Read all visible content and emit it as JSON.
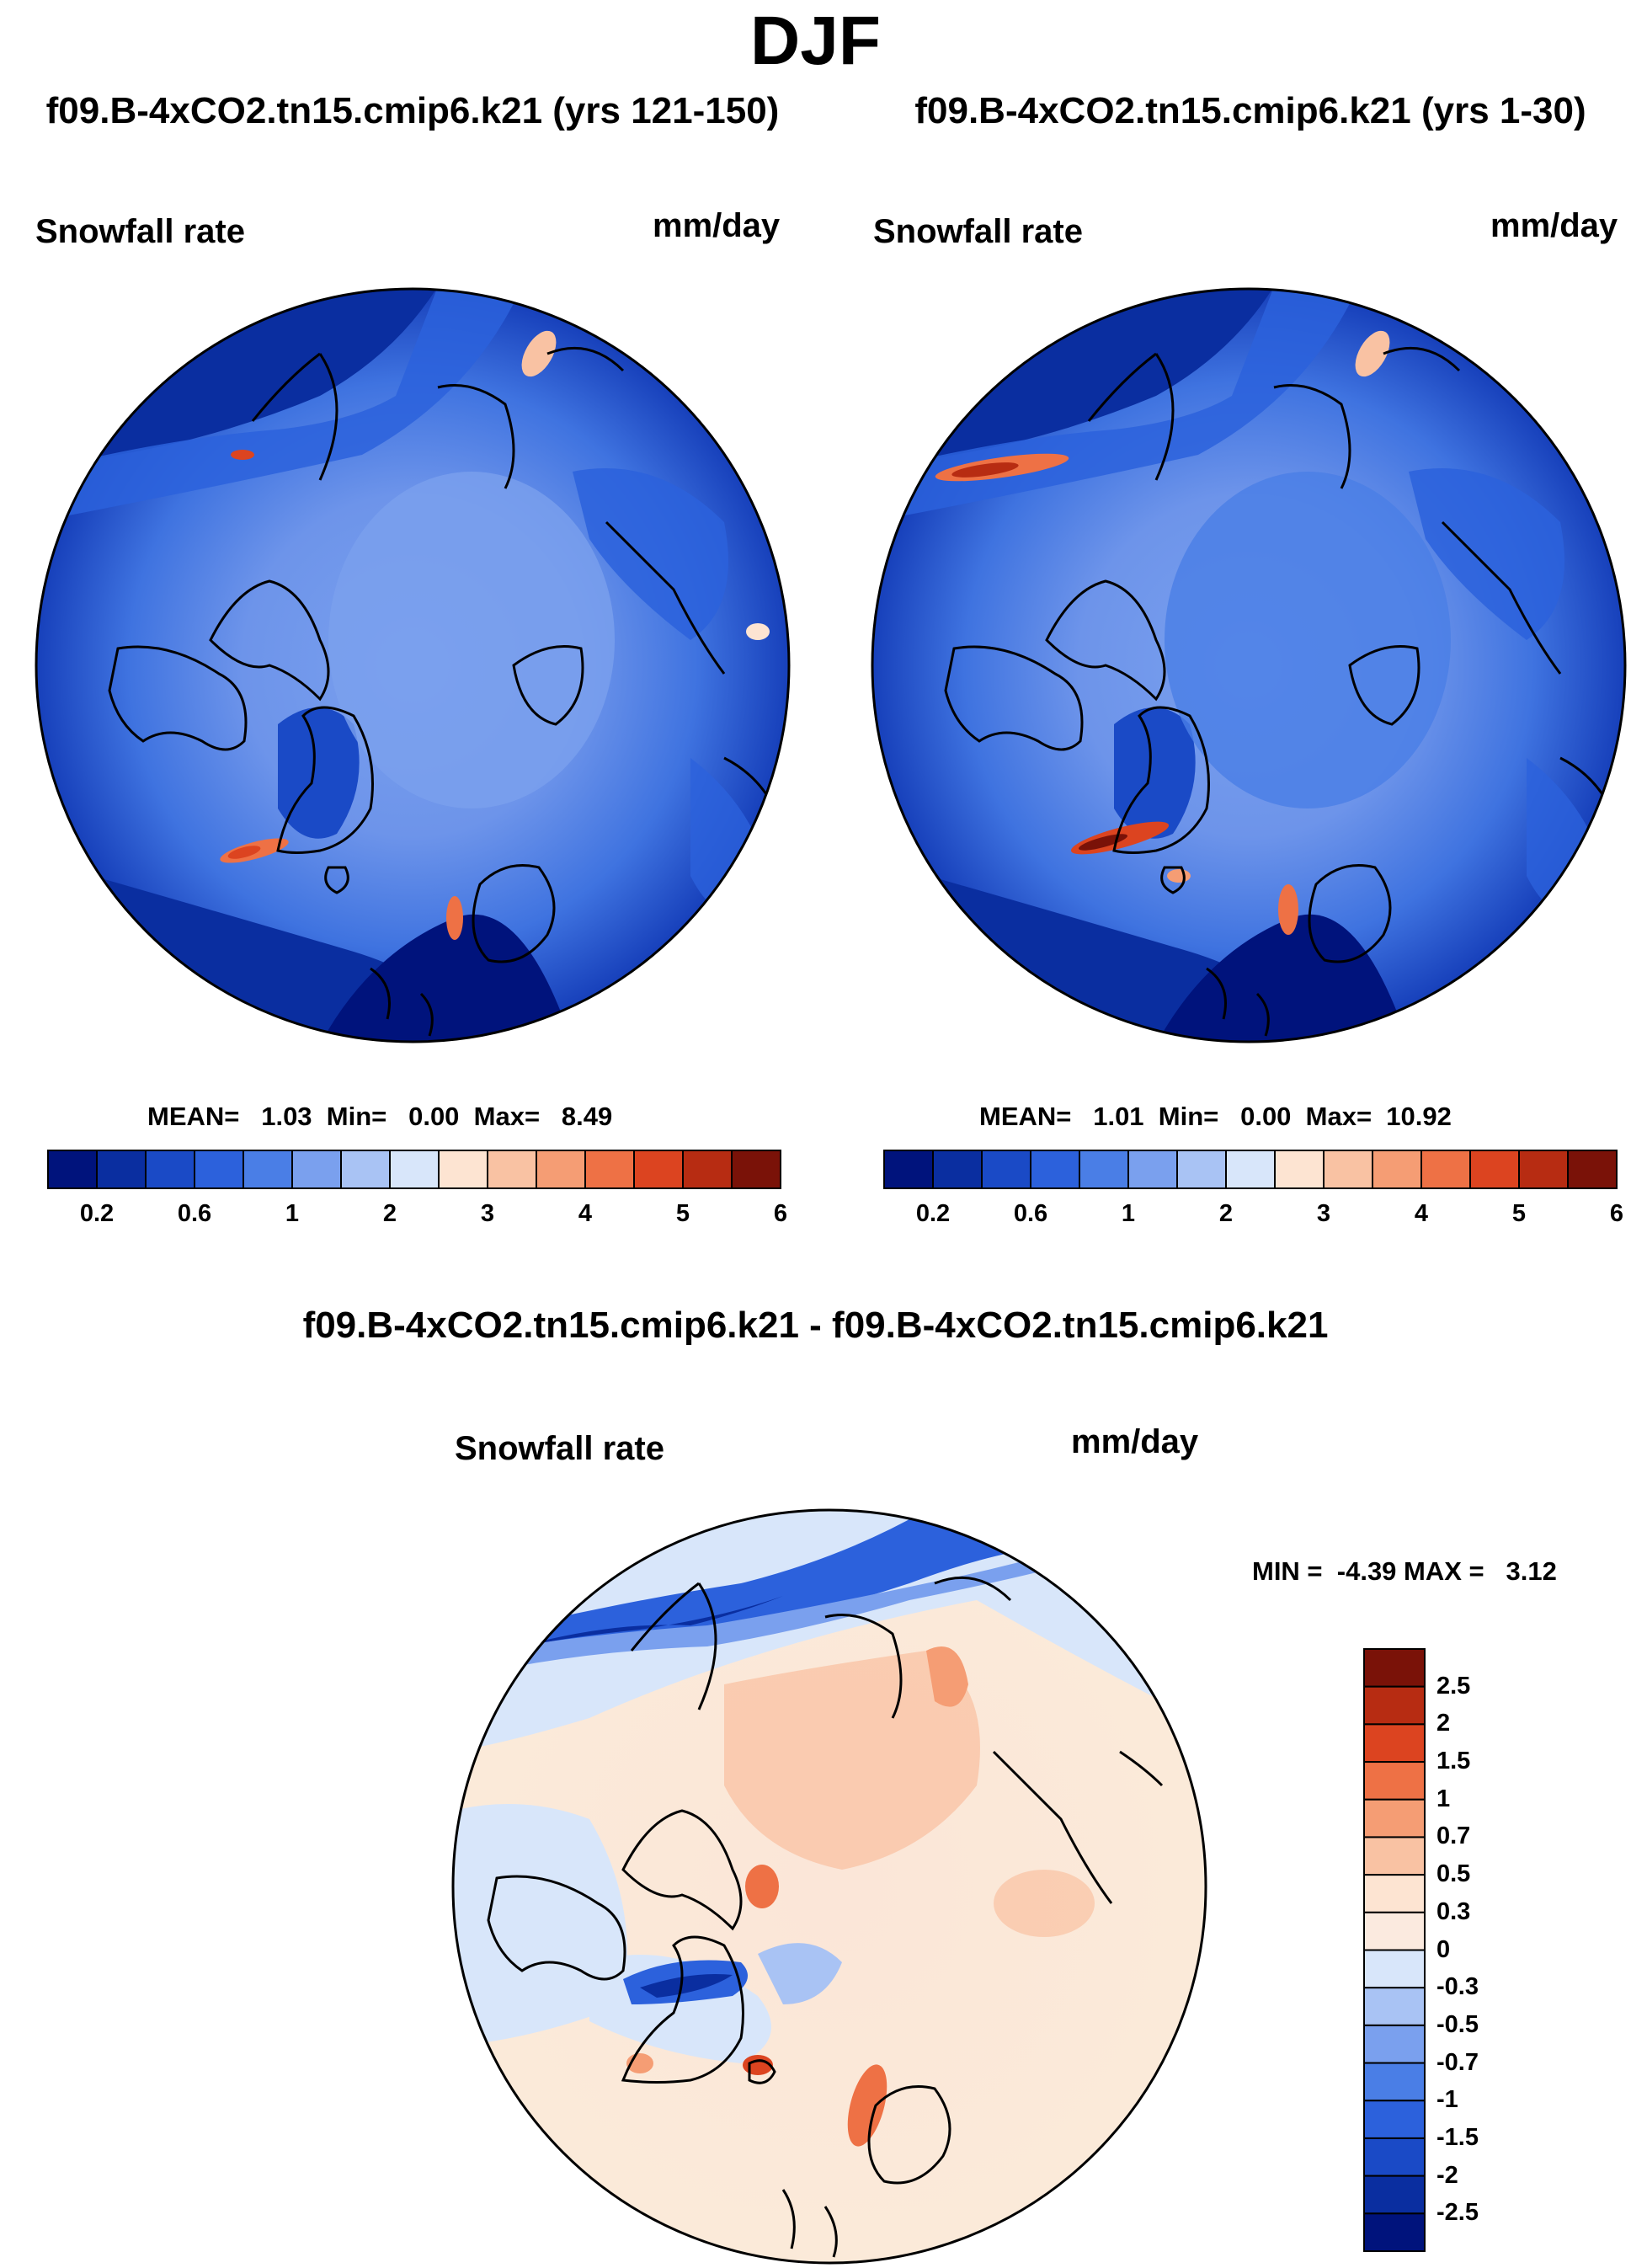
{
  "figure": {
    "title": "DJF",
    "diff_title": "f09.B-4xCO2.tn15.cmip6.k21 - f09.B-4xCO2.tn15.cmip6.k21"
  },
  "panels": [
    {
      "id": "left",
      "case_title": "f09.B-4xCO2.tn15.cmip6.k21 (yrs 121-150)",
      "variable": "Snowfall rate",
      "units": "mm/day",
      "stats_text": "MEAN=   1.03  Min=   0.00  Max=   8.49"
    },
    {
      "id": "right",
      "case_title": "f09.B-4xCO2.tn15.cmip6.k21 (yrs 1-30)",
      "variable": "Snowfall rate",
      "units": "mm/day",
      "stats_text": "MEAN=   1.01  Min=   0.00  Max=  10.92"
    },
    {
      "id": "diff",
      "variable": "Snowfall rate",
      "units": "mm/day",
      "stats_text": "MIN =  -4.39 MAX =   3.12"
    }
  ],
  "chart_data": [
    {
      "type": "heatmap",
      "projection": "north polar stereographic",
      "title": "f09.B-4xCO2.tn15.cmip6.k21 (yrs 121-150)",
      "variable": "Snowfall rate",
      "units": "mm/day",
      "mean": 1.03,
      "min": 0.0,
      "max": 8.49,
      "colorbar": {
        "orientation": "horizontal",
        "tick_labels": [
          "0.2",
          "0.6",
          "1",
          "2",
          "3",
          "4",
          "5",
          "6"
        ],
        "colors": [
          "#00137c",
          "#0a2ea0",
          "#1a4ac6",
          "#2c61dc",
          "#4a7ee6",
          "#7aa0ee",
          "#a9c3f4",
          "#d8e6fa",
          "#fde4d2",
          "#f9c2a3",
          "#f59d74",
          "#ee7145",
          "#dc4420",
          "#b72c12",
          "#7a1208"
        ]
      }
    },
    {
      "type": "heatmap",
      "projection": "north polar stereographic",
      "title": "f09.B-4xCO2.tn15.cmip6.k21 (yrs 1-30)",
      "variable": "Snowfall rate",
      "units": "mm/day",
      "mean": 1.01,
      "min": 0.0,
      "max": 10.92,
      "colorbar": {
        "orientation": "horizontal",
        "tick_labels": [
          "0.2",
          "0.6",
          "1",
          "2",
          "3",
          "4",
          "5",
          "6"
        ],
        "colors": [
          "#00137c",
          "#0a2ea0",
          "#1a4ac6",
          "#2c61dc",
          "#4a7ee6",
          "#7aa0ee",
          "#a9c3f4",
          "#d8e6fa",
          "#fde4d2",
          "#f9c2a3",
          "#f59d74",
          "#ee7145",
          "#dc4420",
          "#b72c12",
          "#7a1208"
        ]
      }
    },
    {
      "type": "heatmap",
      "projection": "north polar stereographic",
      "title": "f09.B-4xCO2.tn15.cmip6.k21 - f09.B-4xCO2.tn15.cmip6.k21",
      "variable": "Snowfall rate",
      "units": "mm/day",
      "min": -4.39,
      "max": 3.12,
      "colorbar": {
        "orientation": "vertical",
        "tick_labels": [
          "2.5",
          "2",
          "1.5",
          "1",
          "0.7",
          "0.5",
          "0.3",
          "0",
          "-0.3",
          "-0.5",
          "-0.7",
          "-1",
          "-1.5",
          "-2",
          "-2.5"
        ],
        "colors": [
          "#7a1208",
          "#b72c12",
          "#dc4420",
          "#ee7145",
          "#f59d74",
          "#f9c2a3",
          "#fde4d2",
          "#fbeadf",
          "#d8e6fa",
          "#a9c3f4",
          "#7aa0ee",
          "#4a7ee6",
          "#2c61dc",
          "#1a4ac6",
          "#0a2ea0",
          "#00137c"
        ]
      }
    }
  ]
}
